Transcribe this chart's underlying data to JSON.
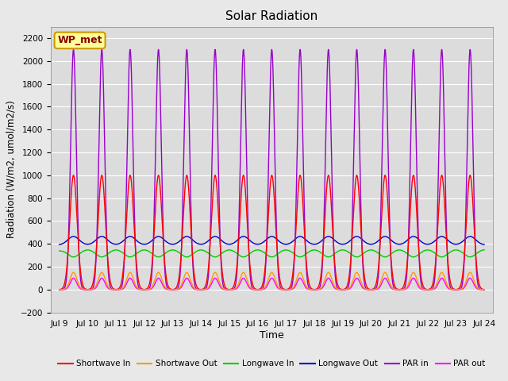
{
  "title": "Solar Radiation",
  "xlabel": "Time",
  "ylabel": "Radiation (W/m2, umol/m2/s)",
  "ylim": [
    -200,
    2300
  ],
  "yticks": [
    -200,
    0,
    200,
    400,
    600,
    800,
    1000,
    1200,
    1400,
    1600,
    1800,
    2000,
    2200
  ],
  "xlim_start": 8.7,
  "xlim_end": 24.3,
  "xtick_positions": [
    9,
    10,
    11,
    12,
    13,
    14,
    15,
    16,
    17,
    18,
    19,
    20,
    21,
    22,
    23,
    24
  ],
  "xtick_labels": [
    "Jul 9",
    "Jul 10",
    "Jul 11",
    "Jul 12",
    "Jul 13",
    "Jul 14",
    "Jul 15",
    "Jul 16",
    "Jul 17",
    "Jul 18",
    "Jul 19",
    "Jul 20",
    "Jul 21",
    "Jul 22",
    "Jul 23",
    "Jul 24"
  ],
  "plot_bg_color": "#dcdcdc",
  "fig_bg_color": "#e8e8e8",
  "grid_color": "#ffffff",
  "legend_entries": [
    "Shortwave In",
    "Shortwave Out",
    "Longwave In",
    "Longwave Out",
    "PAR in",
    "PAR out"
  ],
  "legend_colors": [
    "#ff0000",
    "#ff9900",
    "#00cc00",
    "#0000cc",
    "#9900cc",
    "#ff00ff"
  ],
  "annotation_text": "WP_met",
  "annotation_bg": "#ffff99",
  "annotation_border": "#cc9900",
  "days_start": 9,
  "days_end": 24,
  "shortwave_in_peak": 1000,
  "shortwave_out_peak": 150,
  "longwave_in_baseline": 340,
  "longwave_out_baseline": 390,
  "par_in_peak": 2100,
  "par_out_peak": 100,
  "par_in_night": -5,
  "par_out_night": -5
}
